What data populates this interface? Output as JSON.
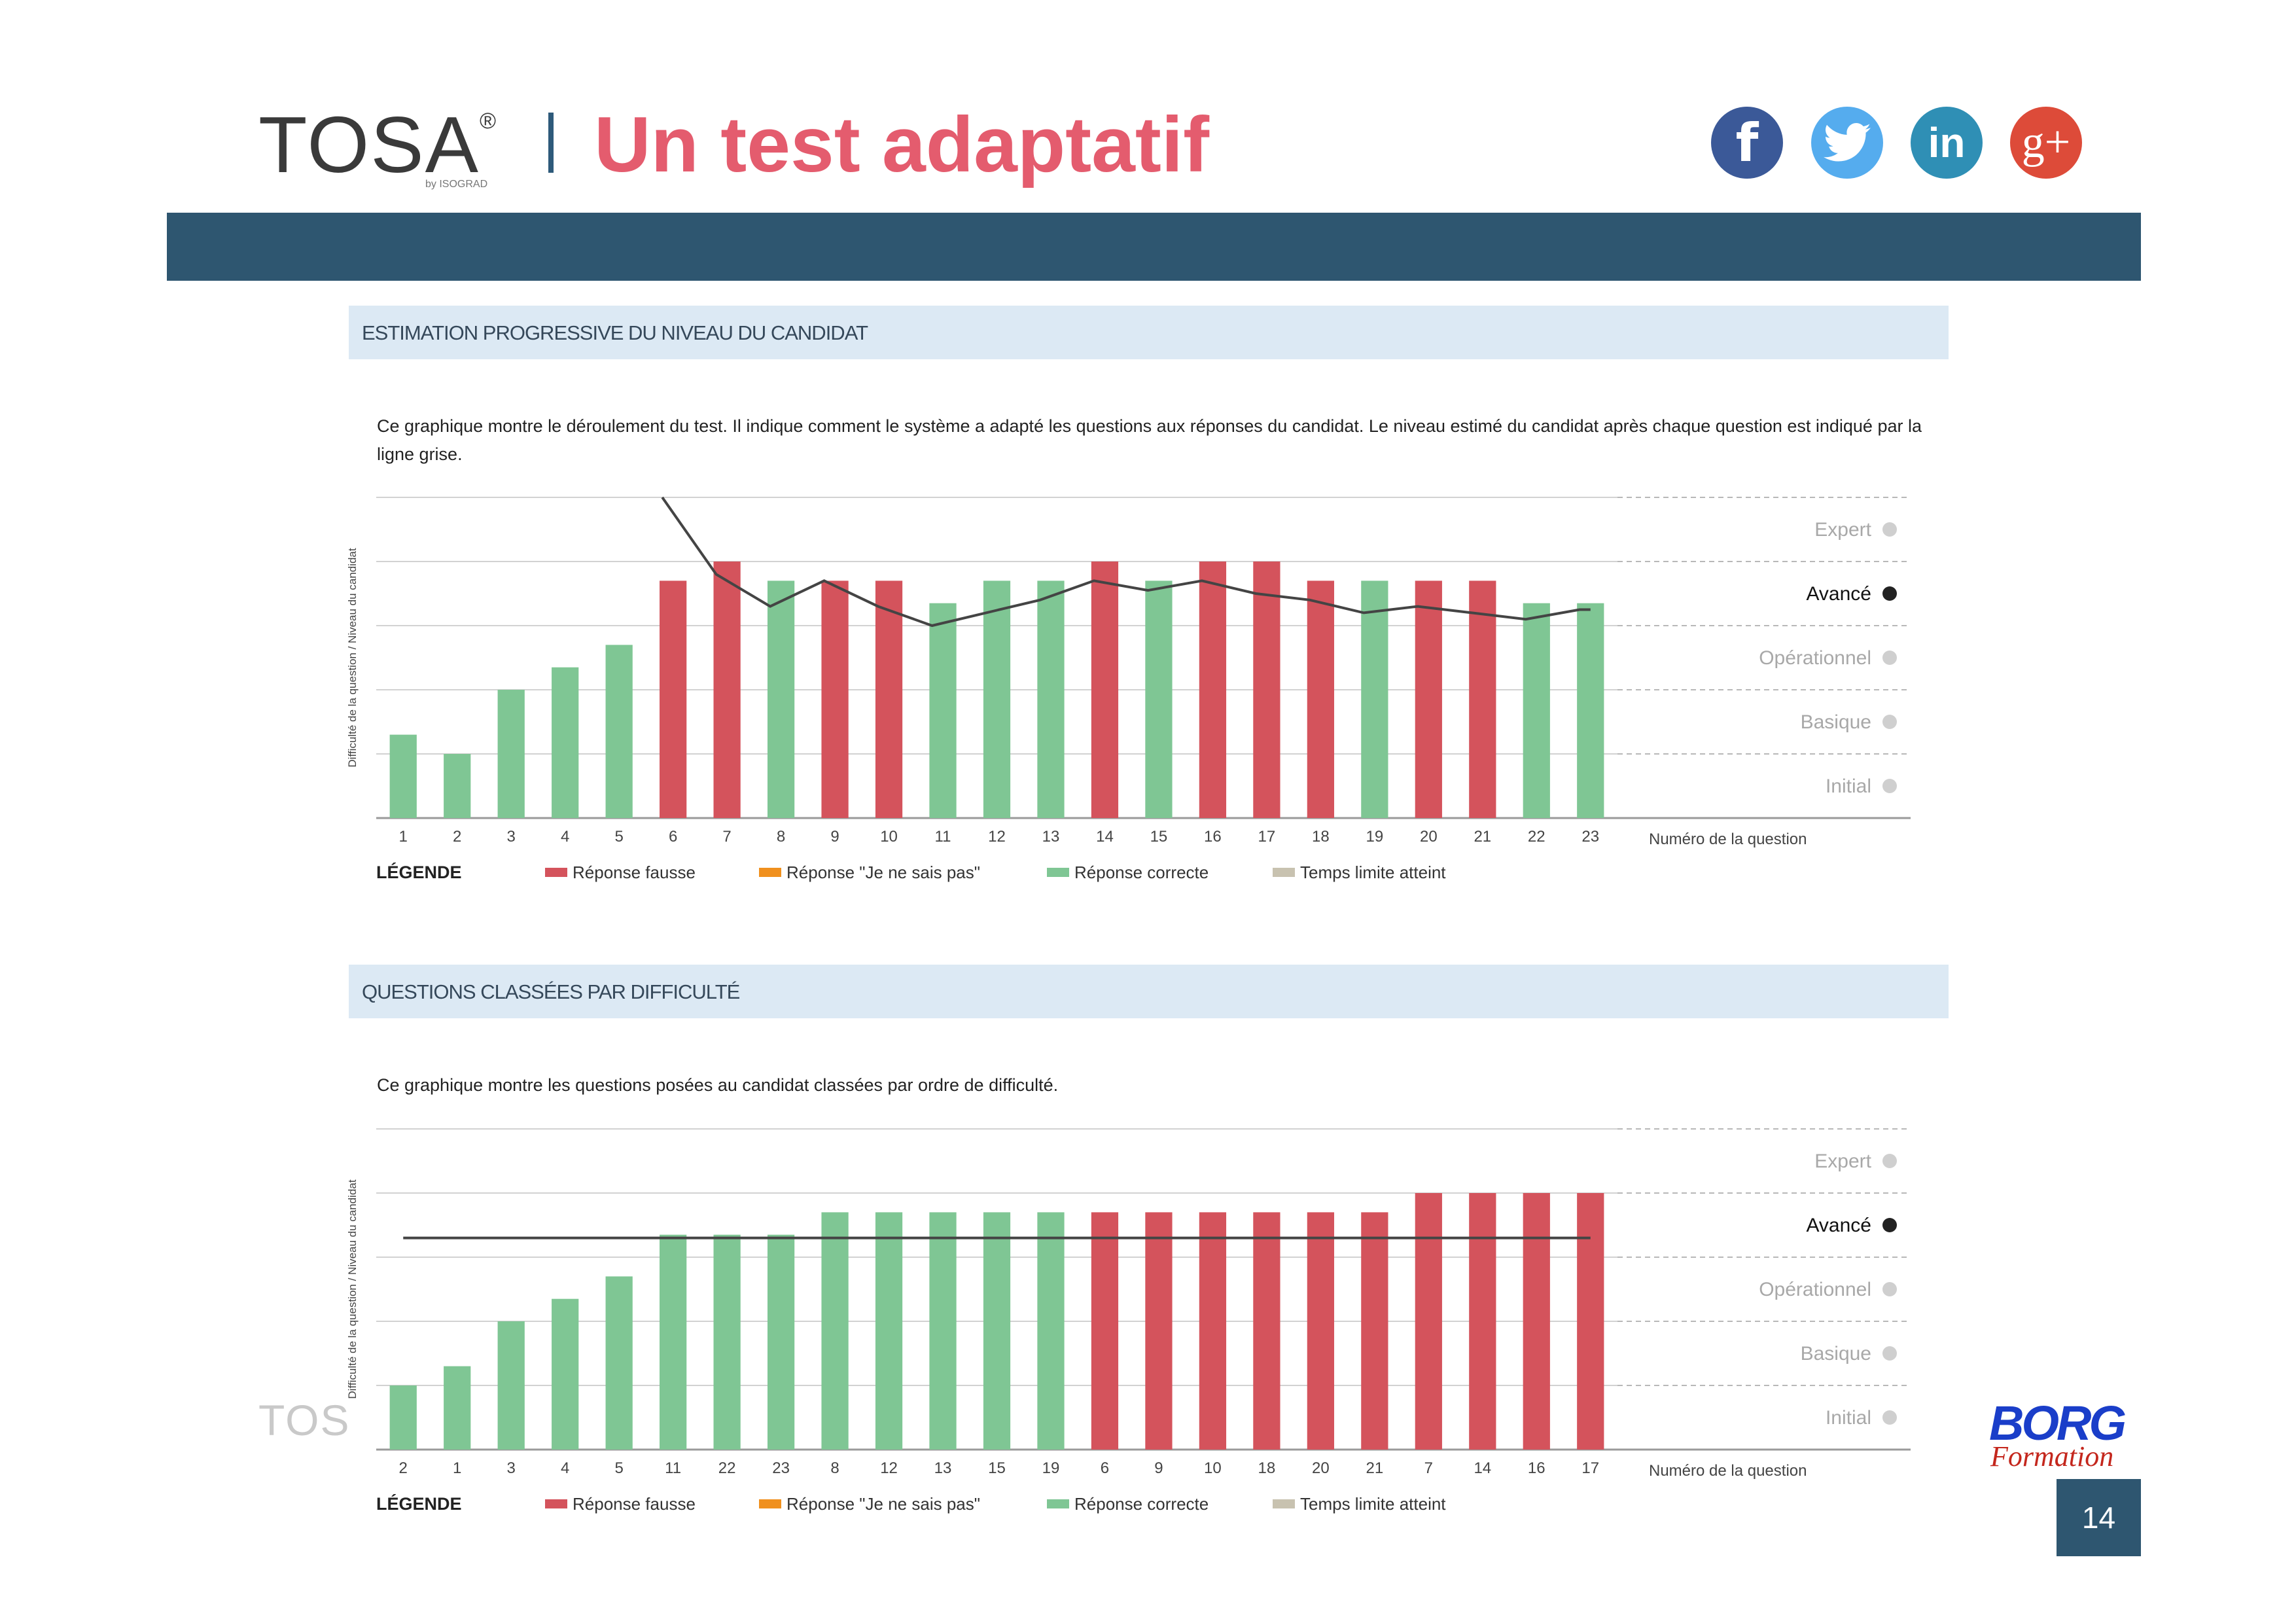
{
  "header": {
    "brand": "TOSA",
    "brand_reg": "®",
    "brand_sub": "by ISOGRAD",
    "title": "Un test adaptatif",
    "social": [
      {
        "name": "facebook-icon",
        "glyph": "f"
      },
      {
        "name": "twitter-icon",
        "glyph": ""
      },
      {
        "name": "linkedin-icon",
        "glyph": "in"
      },
      {
        "name": "google-plus-icon",
        "glyph": "g+"
      }
    ]
  },
  "section1": {
    "heading": "ESTIMATION PROGRESSIVE DU NIVEAU DU CANDIDAT",
    "description": "Ce graphique montre le déroulement du test. Il indique comment le système a adapté les questions aux réponses du candidat. Le niveau estimé du candidat après chaque question est indiqué par la ligne grise."
  },
  "section2": {
    "heading": "QUESTIONS CLASSÉES PAR DIFFICULTÉ",
    "description": "Ce graphique montre les questions posées au candidat classées par ordre de difficulté."
  },
  "footer": {
    "ghost_brand": "TOS",
    "logo": "BORG",
    "logo_sub": "Formation",
    "page_number": "14"
  },
  "colors": {
    "wrong": "#d4535c",
    "dont_know": "#f0901e",
    "correct": "#7fc694",
    "timeout": "#c8c2b0",
    "level_line": "#444444"
  },
  "chart_data": [
    {
      "type": "bar",
      "title": "ESTIMATION PROGRESSIVE DU NIVEAU DU CANDIDAT",
      "ylabel": "Difficulté de la question / Niveau du candidat",
      "xlabel": "Numéro de la question",
      "levels": [
        "Expert",
        "Avancé",
        "Opérationnel",
        "Basique",
        "Initial"
      ],
      "highlight_level": "Avancé",
      "ylim": [
        0,
        5
      ],
      "categories": [
        "1",
        "2",
        "3",
        "4",
        "5",
        "6",
        "7",
        "8",
        "9",
        "10",
        "11",
        "12",
        "13",
        "14",
        "15",
        "16",
        "17",
        "18",
        "19",
        "20",
        "21",
        "22",
        "23"
      ],
      "values": [
        1.3,
        1.0,
        2.0,
        2.35,
        2.7,
        3.7,
        4.0,
        3.7,
        3.7,
        3.7,
        3.35,
        3.7,
        3.7,
        4.0,
        3.7,
        4.0,
        4.0,
        3.7,
        3.7,
        3.7,
        3.7,
        3.35,
        3.35
      ],
      "results": [
        "correct",
        "correct",
        "correct",
        "correct",
        "correct",
        "wrong",
        "wrong",
        "correct",
        "wrong",
        "wrong",
        "correct",
        "correct",
        "correct",
        "wrong",
        "correct",
        "wrong",
        "wrong",
        "wrong",
        "correct",
        "wrong",
        "wrong",
        "correct",
        "correct"
      ],
      "level_line": [
        5.0,
        3.8,
        3.3,
        3.7,
        3.3,
        3.0,
        3.2,
        3.4,
        3.7,
        3.55,
        3.7,
        3.5,
        3.4,
        3.2,
        3.3,
        3.2,
        3.1,
        3.25
      ],
      "level_line_x_start": 5.3,
      "legend": {
        "title": "LÉGENDE",
        "items": [
          {
            "label": "Réponse fausse",
            "key": "wrong"
          },
          {
            "label": "Réponse \"Je ne sais pas\"",
            "key": "dont_know"
          },
          {
            "label": "Réponse correcte",
            "key": "correct"
          },
          {
            "label": "Temps limite atteint",
            "key": "timeout"
          }
        ]
      }
    },
    {
      "type": "bar",
      "title": "QUESTIONS CLASSÉES PAR DIFFICULTÉ",
      "ylabel": "Difficulté de la question / Niveau du candidat",
      "xlabel": "Numéro de la question",
      "levels": [
        "Expert",
        "Avancé",
        "Opérationnel",
        "Basique",
        "Initial"
      ],
      "highlight_level": "Avancé",
      "ylim": [
        0,
        5
      ],
      "categories": [
        "2",
        "1",
        "3",
        "4",
        "5",
        "11",
        "22",
        "23",
        "8",
        "12",
        "13",
        "15",
        "19",
        "6",
        "9",
        "10",
        "18",
        "20",
        "21",
        "7",
        "14",
        "16",
        "17"
      ],
      "values": [
        1.0,
        1.3,
        2.0,
        2.35,
        2.7,
        3.35,
        3.35,
        3.35,
        3.7,
        3.7,
        3.7,
        3.7,
        3.7,
        3.7,
        3.7,
        3.7,
        3.7,
        3.7,
        3.7,
        4.0,
        4.0,
        4.0,
        4.0
      ],
      "results": [
        "correct",
        "correct",
        "correct",
        "correct",
        "correct",
        "correct",
        "correct",
        "correct",
        "correct",
        "correct",
        "correct",
        "correct",
        "correct",
        "wrong",
        "wrong",
        "wrong",
        "wrong",
        "wrong",
        "wrong",
        "wrong",
        "wrong",
        "wrong",
        "wrong"
      ],
      "level_value": 3.3,
      "legend": {
        "title": "LÉGENDE",
        "items": [
          {
            "label": "Réponse fausse",
            "key": "wrong"
          },
          {
            "label": "Réponse \"Je ne sais pas\"",
            "key": "dont_know"
          },
          {
            "label": "Réponse correcte",
            "key": "correct"
          },
          {
            "label": "Temps limite atteint",
            "key": "timeout"
          }
        ]
      }
    }
  ]
}
